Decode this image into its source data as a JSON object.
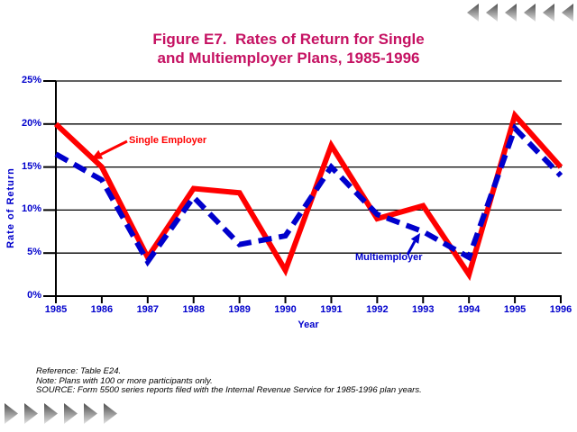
{
  "nav": {
    "top_arrows": {
      "count": 6,
      "direction": "left",
      "name": "prev-slide-arrow"
    },
    "bottom_arrows": {
      "count": 6,
      "direction": "right",
      "name": "next-slide-arrow"
    }
  },
  "title": {
    "line1": "Figure E7.  Rates of Return for Single",
    "line2": "and Multiemployer Plans, 1985-1996"
  },
  "colors": {
    "title": "#C51162",
    "axis_text": "#0000CC",
    "single_employer": "#FF0000",
    "multiemployer": "#0000CC",
    "grid": "#000000"
  },
  "chart_data": {
    "type": "line",
    "title": "Figure E7. Rates of Return for Single and Multiemployer Plans, 1985-1996",
    "xlabel": "Year",
    "ylabel": "Rate of Return",
    "x": [
      1985,
      1986,
      1987,
      1988,
      1989,
      1990,
      1991,
      1992,
      1993,
      1994,
      1995,
      1996
    ],
    "series": [
      {
        "name": "Single Employer",
        "style": "solid",
        "color": "#FF0000",
        "values": [
          20.0,
          15.0,
          4.5,
          12.5,
          12.0,
          3.0,
          17.5,
          9.0,
          10.5,
          2.5,
          21.0,
          15.0
        ]
      },
      {
        "name": "Multiemployer",
        "style": "dashed",
        "color": "#0000CC",
        "values": [
          16.5,
          13.5,
          4.0,
          11.5,
          6.0,
          7.0,
          15.0,
          9.5,
          7.5,
          4.5,
          19.5,
          14.0
        ]
      }
    ],
    "ylim": [
      0,
      25
    ],
    "ytick_step": 5,
    "ytick_format": "percent",
    "grid": true,
    "legend_position": "inline-annotations",
    "annotations": [
      {
        "text": "Single Employer",
        "series": "Single Employer"
      },
      {
        "text": "Multiemployer",
        "series": "Multiemployer"
      }
    ]
  },
  "footer": {
    "lines": [
      "Reference: Table E24.",
      "Note: Plans with 100 or more participants only.",
      "SOURCE: Form 5500 series reports filed with the Internal Revenue Service for 1985-1996 plan years."
    ]
  }
}
